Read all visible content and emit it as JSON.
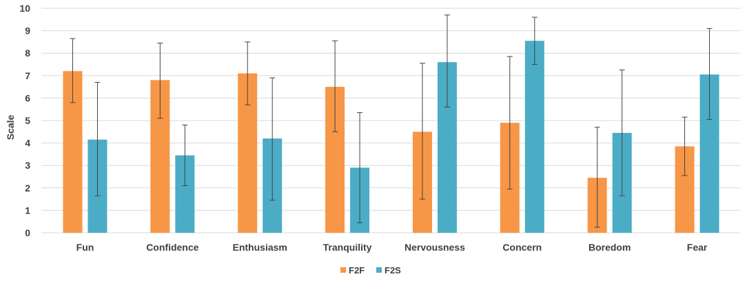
{
  "chart_data": {
    "type": "bar",
    "title": "",
    "xlabel": "",
    "ylabel": "Scale",
    "ylim": [
      0,
      10
    ],
    "yticks": [
      "0",
      "1",
      "2",
      "3",
      "4",
      "5",
      "6",
      "7",
      "8",
      "9",
      "10"
    ],
    "grid": true,
    "legend_position": "bottom",
    "categories": [
      "Fun",
      "Confidence",
      "Enthusiasm",
      "Tranquility",
      "Nervousness",
      "Concern",
      "Boredom",
      "Fear"
    ],
    "series": [
      {
        "name": "F2F",
        "color": "#F79646",
        "values": [
          7.2,
          6.8,
          7.1,
          6.5,
          4.5,
          4.9,
          2.45,
          3.85
        ],
        "error_low": [
          5.8,
          5.1,
          5.7,
          4.5,
          1.5,
          1.95,
          0.25,
          2.55
        ],
        "error_high": [
          8.65,
          8.45,
          8.5,
          8.55,
          7.55,
          7.85,
          4.7,
          5.15
        ]
      },
      {
        "name": "F2S",
        "color": "#4BACC6",
        "values": [
          4.15,
          3.45,
          4.2,
          2.9,
          7.6,
          8.55,
          4.45,
          7.05
        ],
        "error_low": [
          1.65,
          2.1,
          1.45,
          0.45,
          5.6,
          7.5,
          1.65,
          5.05
        ],
        "error_high": [
          6.7,
          4.8,
          6.9,
          5.35,
          9.7,
          9.6,
          7.25,
          9.1
        ]
      }
    ]
  }
}
